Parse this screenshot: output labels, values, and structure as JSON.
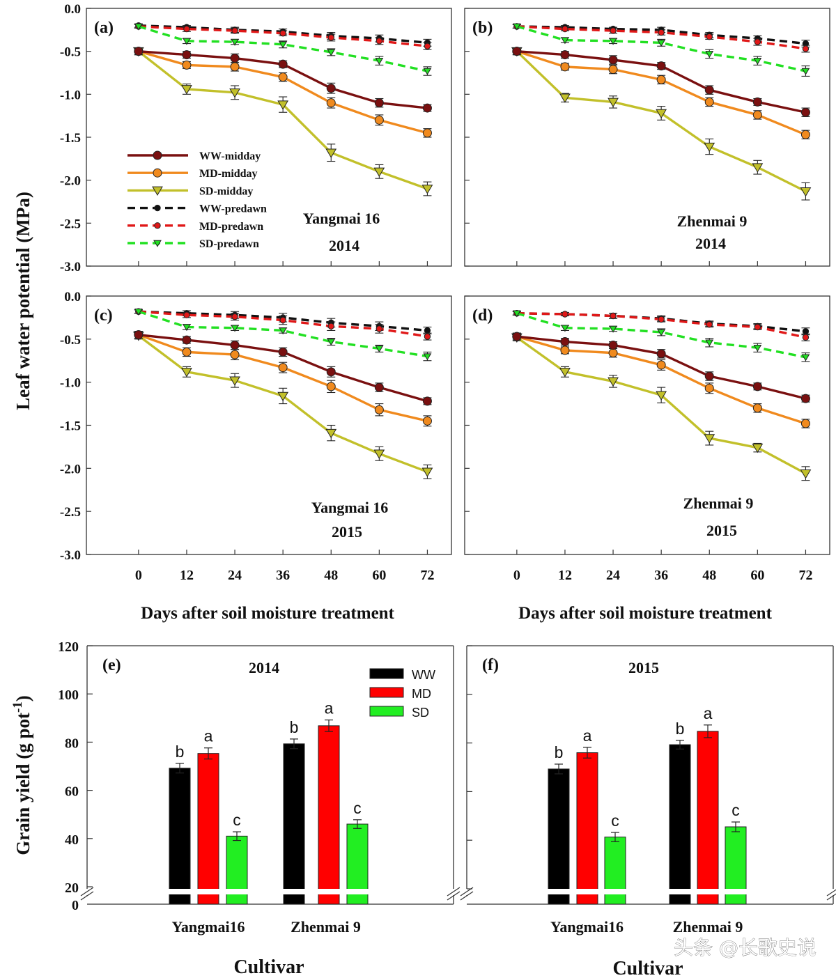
{
  "figure": {
    "y_label_top": "Leaf water potential (MPa)",
    "x_label_top": "Days after soil moisture treatment",
    "y_label_bottom": "Grain yield (g pot",
    "y_label_bottom_sup": "-1",
    "y_label_bottom_end": ")",
    "x_label_bottom": "Cultivar",
    "watermark": "头条 @长歌史说"
  },
  "colors": {
    "WW-midday": "#7a1010",
    "MD-midday": "#f08a1e",
    "SD-midday": "#c2c02a",
    "WW-predawn": "#111111",
    "MD-predawn": "#e01818",
    "SD-predawn": "#22e022",
    "WW": "#000000",
    "MD": "#ff0000",
    "SD": "#22ee22"
  },
  "chart_data": [
    {
      "type": "line",
      "panel": "(a)",
      "title": "Yangmai 16",
      "subtitle": "2014",
      "xlabel": "Days after soil moisture treatment",
      "ylabel": "Leaf water potential (MPa)",
      "x": [
        0,
        12,
        24,
        36,
        48,
        60,
        72
      ],
      "xlim": [
        -13,
        78
      ],
      "ylim": [
        -3.0,
        0.0
      ],
      "yticks": [
        "0.0",
        "-0.5",
        "-1.0",
        "-1.5",
        "-2.0",
        "-2.5",
        "-3.0"
      ],
      "legend": [
        "WW-midday",
        "MD-midday",
        "SD-midday",
        "WW-predawn",
        "MD-predawn",
        "SD-predawn"
      ],
      "series": [
        {
          "name": "WW-midday",
          "values": [
            -0.5,
            -0.54,
            -0.58,
            -0.65,
            -0.93,
            -1.1,
            -1.16
          ],
          "err": [
            0.04,
            0.04,
            0.05,
            0.04,
            0.06,
            0.05,
            0.04
          ]
        },
        {
          "name": "MD-midday",
          "values": [
            -0.5,
            -0.66,
            -0.68,
            -0.8,
            -1.1,
            -1.3,
            -1.45
          ],
          "err": [
            0.04,
            0.04,
            0.05,
            0.05,
            0.06,
            0.06,
            0.05
          ]
        },
        {
          "name": "SD-midday",
          "values": [
            -0.5,
            -0.94,
            -0.98,
            -1.12,
            -1.68,
            -1.9,
            -2.1
          ],
          "err": [
            0.04,
            0.06,
            0.08,
            0.09,
            0.1,
            0.08,
            0.08
          ]
        },
        {
          "name": "WW-predawn",
          "values": [
            -0.2,
            -0.22,
            -0.25,
            -0.27,
            -0.32,
            -0.35,
            -0.4
          ],
          "err": [
            0.02,
            0.02,
            0.03,
            0.03,
            0.04,
            0.04,
            0.04
          ]
        },
        {
          "name": "MD-predawn",
          "values": [
            -0.21,
            -0.24,
            -0.26,
            -0.29,
            -0.34,
            -0.38,
            -0.44
          ],
          "err": [
            0.02,
            0.03,
            0.03,
            0.03,
            0.04,
            0.04,
            0.04
          ]
        },
        {
          "name": "SD-predawn",
          "values": [
            -0.21,
            -0.38,
            -0.39,
            -0.42,
            -0.51,
            -0.61,
            -0.73
          ],
          "err": [
            0.02,
            0.03,
            0.03,
            0.04,
            0.04,
            0.05,
            0.05
          ]
        }
      ]
    },
    {
      "type": "line",
      "panel": "(b)",
      "title": "Zhenmai 9",
      "subtitle": "2014",
      "x": [
        0,
        12,
        24,
        36,
        48,
        60,
        72
      ],
      "xlim": [
        -13,
        78
      ],
      "ylim": [
        -3.0,
        0.0
      ],
      "series": [
        {
          "name": "WW-midday",
          "values": [
            -0.5,
            -0.54,
            -0.6,
            -0.67,
            -0.95,
            -1.09,
            -1.21
          ],
          "err": [
            0.04,
            0.04,
            0.05,
            0.04,
            0.05,
            0.04,
            0.05
          ]
        },
        {
          "name": "MD-midday",
          "values": [
            -0.5,
            -0.68,
            -0.71,
            -0.83,
            -1.09,
            -1.24,
            -1.47
          ],
          "err": [
            0.04,
            0.04,
            0.05,
            0.05,
            0.05,
            0.05,
            0.05
          ]
        },
        {
          "name": "SD-midday",
          "values": [
            -0.5,
            -1.04,
            -1.09,
            -1.22,
            -1.61,
            -1.85,
            -2.13
          ],
          "err": [
            0.04,
            0.05,
            0.07,
            0.08,
            0.09,
            0.08,
            0.1
          ]
        },
        {
          "name": "WW-predawn",
          "values": [
            -0.21,
            -0.22,
            -0.24,
            -0.25,
            -0.31,
            -0.35,
            -0.41
          ],
          "err": [
            0.02,
            0.02,
            0.02,
            0.03,
            0.03,
            0.03,
            0.04
          ]
        },
        {
          "name": "MD-predawn",
          "values": [
            -0.21,
            -0.24,
            -0.26,
            -0.28,
            -0.33,
            -0.39,
            -0.47
          ],
          "err": [
            0.02,
            0.02,
            0.03,
            0.03,
            0.03,
            0.04,
            0.04
          ]
        },
        {
          "name": "SD-predawn",
          "values": [
            -0.21,
            -0.37,
            -0.38,
            -0.4,
            -0.53,
            -0.61,
            -0.73
          ],
          "err": [
            0.02,
            0.03,
            0.03,
            0.04,
            0.05,
            0.05,
            0.06
          ]
        }
      ]
    },
    {
      "type": "line",
      "panel": "(c)",
      "title": "Yangmai 16",
      "subtitle": "2015",
      "x": [
        0,
        12,
        24,
        36,
        48,
        60,
        72
      ],
      "xlim": [
        -13,
        78
      ],
      "ylim": [
        -3.0,
        0.0
      ],
      "yticks": [
        "0.0",
        "-0.5",
        "-1.0",
        "-1.5",
        "-2.0",
        "-2.5",
        "-3.0"
      ],
      "xticks": [
        "0",
        "12",
        "24",
        "36",
        "48",
        "60",
        "72"
      ],
      "series": [
        {
          "name": "WW-midday",
          "values": [
            -0.45,
            -0.51,
            -0.57,
            -0.65,
            -0.88,
            -1.06,
            -1.22
          ],
          "err": [
            0.04,
            0.04,
            0.05,
            0.05,
            0.06,
            0.05,
            0.04
          ]
        },
        {
          "name": "MD-midday",
          "values": [
            -0.45,
            -0.65,
            -0.68,
            -0.83,
            -1.05,
            -1.32,
            -1.45
          ],
          "err": [
            0.04,
            0.05,
            0.06,
            0.06,
            0.07,
            0.07,
            0.06
          ]
        },
        {
          "name": "SD-midday",
          "values": [
            -0.46,
            -0.88,
            -0.98,
            -1.16,
            -1.59,
            -1.83,
            -2.04
          ],
          "err": [
            0.04,
            0.06,
            0.08,
            0.09,
            0.09,
            0.08,
            0.08
          ]
        },
        {
          "name": "WW-predawn",
          "values": [
            -0.18,
            -0.2,
            -0.22,
            -0.25,
            -0.31,
            -0.35,
            -0.4
          ],
          "err": [
            0.02,
            0.03,
            0.04,
            0.05,
            0.05,
            0.05,
            0.04
          ]
        },
        {
          "name": "MD-predawn",
          "values": [
            -0.18,
            -0.22,
            -0.24,
            -0.28,
            -0.35,
            -0.38,
            -0.47
          ],
          "err": [
            0.02,
            0.03,
            0.04,
            0.05,
            0.05,
            0.05,
            0.04
          ]
        },
        {
          "name": "SD-predawn",
          "values": [
            -0.18,
            -0.36,
            -0.37,
            -0.4,
            -0.53,
            -0.61,
            -0.7
          ],
          "err": [
            0.02,
            0.03,
            0.03,
            0.03,
            0.04,
            0.04,
            0.05
          ]
        }
      ]
    },
    {
      "type": "line",
      "panel": "(d)",
      "title": "Zhenmai 9",
      "subtitle": "2015",
      "x": [
        0,
        12,
        24,
        36,
        48,
        60,
        72
      ],
      "xlim": [
        -13,
        78
      ],
      "ylim": [
        -3.0,
        0.0
      ],
      "xticks": [
        "0",
        "12",
        "24",
        "36",
        "48",
        "60",
        "72"
      ],
      "series": [
        {
          "name": "WW-midday",
          "values": [
            -0.47,
            -0.53,
            -0.57,
            -0.67,
            -0.93,
            -1.05,
            -1.19
          ],
          "err": [
            0.04,
            0.04,
            0.04,
            0.05,
            0.05,
            0.04,
            0.04
          ]
        },
        {
          "name": "MD-midday",
          "values": [
            -0.47,
            -0.63,
            -0.66,
            -0.8,
            -1.07,
            -1.3,
            -1.48
          ],
          "err": [
            0.04,
            0.04,
            0.05,
            0.06,
            0.06,
            0.05,
            0.05
          ]
        },
        {
          "name": "SD-midday",
          "values": [
            -0.48,
            -0.88,
            -0.99,
            -1.15,
            -1.65,
            -1.76,
            -2.06
          ],
          "err": [
            0.04,
            0.06,
            0.07,
            0.09,
            0.08,
            0.05,
            0.08
          ]
        },
        {
          "name": "WW-predawn",
          "values": [
            -0.2,
            -0.21,
            -0.23,
            -0.26,
            -0.32,
            -0.35,
            -0.41
          ],
          "err": [
            0.02,
            0.02,
            0.03,
            0.03,
            0.03,
            0.03,
            0.04
          ]
        },
        {
          "name": "MD-predawn",
          "values": [
            -0.2,
            -0.21,
            -0.23,
            -0.27,
            -0.33,
            -0.36,
            -0.48
          ],
          "err": [
            0.02,
            0.02,
            0.03,
            0.03,
            0.03,
            0.03,
            0.04
          ]
        },
        {
          "name": "SD-predawn",
          "values": [
            -0.2,
            -0.37,
            -0.38,
            -0.42,
            -0.54,
            -0.6,
            -0.71
          ],
          "err": [
            0.02,
            0.03,
            0.03,
            0.04,
            0.05,
            0.05,
            0.05
          ]
        }
      ]
    },
    {
      "type": "bar",
      "panel": "(e)",
      "title": "2014",
      "xlabel": "Cultivar",
      "ylabel": "Grain yield (g pot-1)",
      "categories": [
        "Yangmai16",
        "Zhenmai 9"
      ],
      "ylim": [
        0,
        120
      ],
      "axis_break": [
        0,
        20
      ],
      "yticks": [
        "120",
        "100",
        "80",
        "60",
        "40",
        "20",
        "0"
      ],
      "legend": [
        "WW",
        "MD",
        "SD"
      ],
      "series": [
        {
          "name": "WW",
          "values": [
            69.2,
            79.3
          ],
          "err": [
            2.0,
            2.0
          ],
          "letters": [
            "b",
            "b"
          ]
        },
        {
          "name": "MD",
          "values": [
            75.3,
            86.8
          ],
          "err": [
            2.3,
            2.4
          ],
          "letters": [
            "a",
            "a"
          ]
        },
        {
          "name": "SD",
          "values": [
            41.0,
            46.0
          ],
          "err": [
            1.8,
            1.8
          ],
          "letters": [
            "c",
            "c"
          ]
        }
      ]
    },
    {
      "type": "bar",
      "panel": "(f)",
      "title": "2015",
      "xlabel": "Cultivar",
      "categories": [
        "Yangmai16",
        "Zhenmai 9"
      ],
      "ylim": [
        0,
        120
      ],
      "axis_break": [
        0,
        20
      ],
      "series": [
        {
          "name": "WW",
          "values": [
            69.3,
            79.3
          ],
          "err": [
            2.0,
            1.8
          ],
          "letters": [
            "b",
            "b"
          ]
        },
        {
          "name": "MD",
          "values": [
            76.0,
            84.8
          ],
          "err": [
            2.2,
            2.6
          ],
          "letters": [
            "a",
            "a"
          ]
        },
        {
          "name": "SD",
          "values": [
            41.3,
            45.5
          ],
          "err": [
            1.9,
            2.0
          ],
          "letters": [
            "c",
            "c"
          ]
        }
      ]
    }
  ]
}
